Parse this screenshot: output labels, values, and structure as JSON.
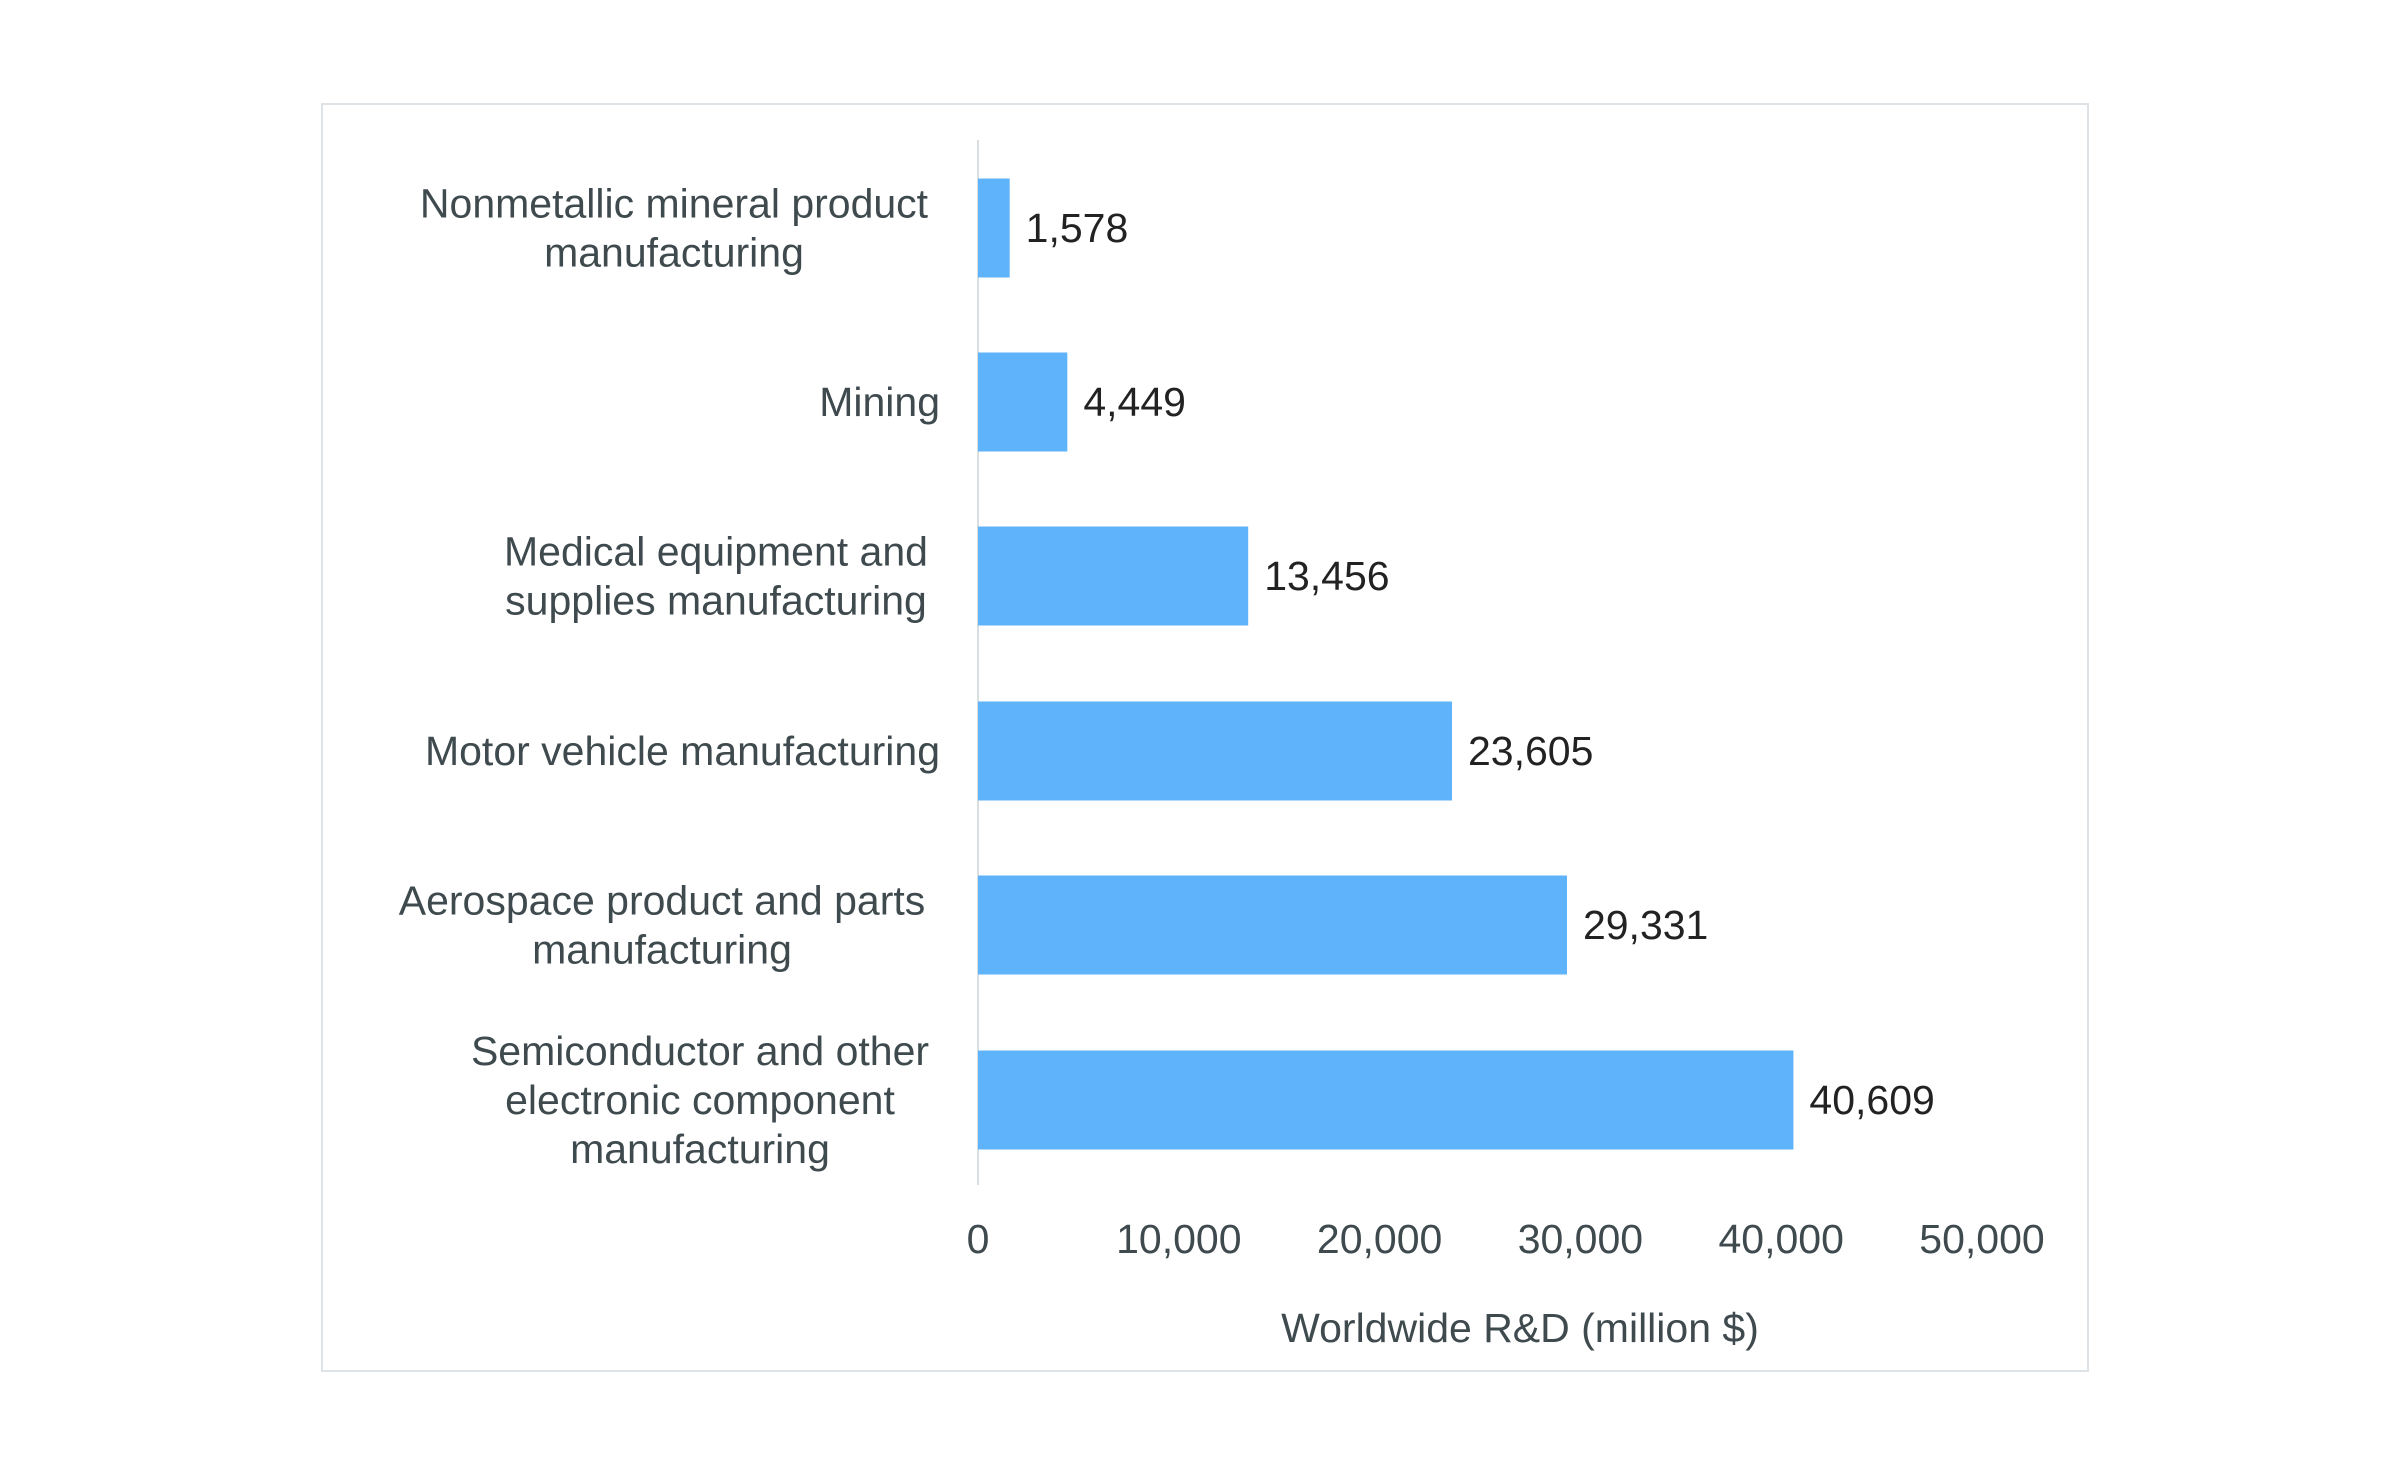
{
  "chart_data": {
    "type": "bar",
    "orientation": "horizontal",
    "title": "",
    "xlabel": "Worldwide R&D (million $)",
    "ylabel": "",
    "xlim": [
      0,
      50000
    ],
    "xticks": [
      0,
      10000,
      20000,
      30000,
      40000,
      50000
    ],
    "xtick_labels": [
      "0",
      "10,000",
      "20,000",
      "30,000",
      "40,000",
      "50,000"
    ],
    "grid": false,
    "categories": [
      [
        "Nonmetallic mineral product",
        "manufacturing"
      ],
      [
        "Mining"
      ],
      [
        "Medical equipment and",
        "supplies manufacturing"
      ],
      [
        "Motor vehicle manufacturing"
      ],
      [
        "Aerospace product and parts",
        "manufacturing"
      ],
      [
        "Semiconductor and other",
        "electronic component",
        "manufacturing"
      ]
    ],
    "values": [
      1578,
      4449,
      13456,
      23605,
      29331,
      40609
    ],
    "value_labels": [
      "1,578",
      "4,449",
      "13,456",
      "23,605",
      "29,331",
      "40,609"
    ],
    "colors": {
      "bar": "#5eb3fb",
      "label_text": "#3f4a4e",
      "value_text": "#222222",
      "frame": "#dde3e6",
      "axis": "#d9dee0"
    }
  }
}
